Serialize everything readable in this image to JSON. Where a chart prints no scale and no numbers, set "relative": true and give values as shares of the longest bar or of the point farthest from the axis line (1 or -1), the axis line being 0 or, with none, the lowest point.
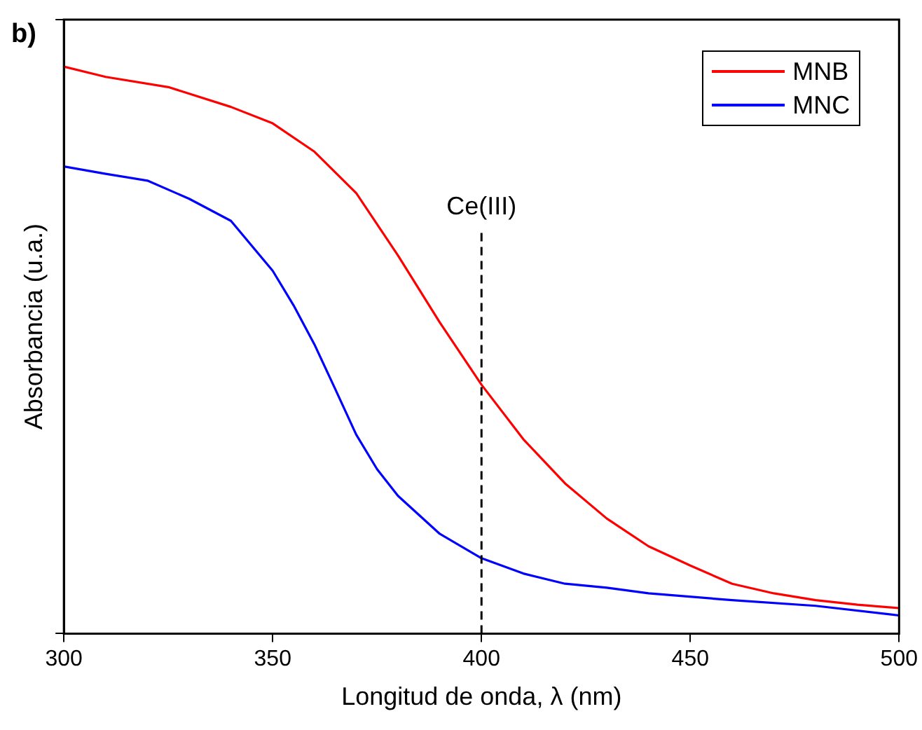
{
  "chart_data": {
    "type": "line",
    "title": "b)",
    "xlabel": "Longitud de onda, λ (nm)",
    "ylabel": "Absorbancia (u.a.)",
    "relative": true,
    "xlim": [
      300,
      500
    ],
    "xticks": [
      300,
      350,
      400,
      450,
      500
    ],
    "tick_labels": "x",
    "legend": "top right",
    "grid": false,
    "marker": "none",
    "line_style": "solid",
    "x": [
      300,
      310,
      325,
      340,
      350,
      360,
      370,
      380,
      390,
      400,
      410,
      420,
      430,
      440,
      450,
      460,
      470,
      480,
      490,
      500
    ],
    "series": [
      {
        "name": "MNB",
        "color": "#ff0000",
        "values": [
          1,
          0.982,
          0.964,
          0.929,
          0.9,
          0.85,
          0.777,
          0.667,
          0.549,
          0.439,
          0.343,
          0.265,
          0.203,
          0.154,
          0.12,
          0.088,
          0.071,
          0.059,
          0.051,
          0.045
        ]
      },
      {
        "name": "MNC",
        "color": "#0000ff",
        "x": [
          300,
          310,
          320,
          330,
          340,
          350,
          355,
          360,
          365,
          370,
          375,
          380,
          390,
          400,
          410,
          420,
          430,
          440,
          460,
          480,
          500
        ],
        "values": [
          0.824,
          0.811,
          0.799,
          0.767,
          0.728,
          0.64,
          0.579,
          0.51,
          0.431,
          0.351,
          0.29,
          0.243,
          0.176,
          0.133,
          0.106,
          0.088,
          0.081,
          0.071,
          0.059,
          0.049,
          0.032
        ]
      }
    ],
    "ref_lines": [
      {
        "axis": "x",
        "value": 400,
        "label": "Ce(III)",
        "color": "#000000",
        "line_style": "dashed"
      }
    ]
  }
}
